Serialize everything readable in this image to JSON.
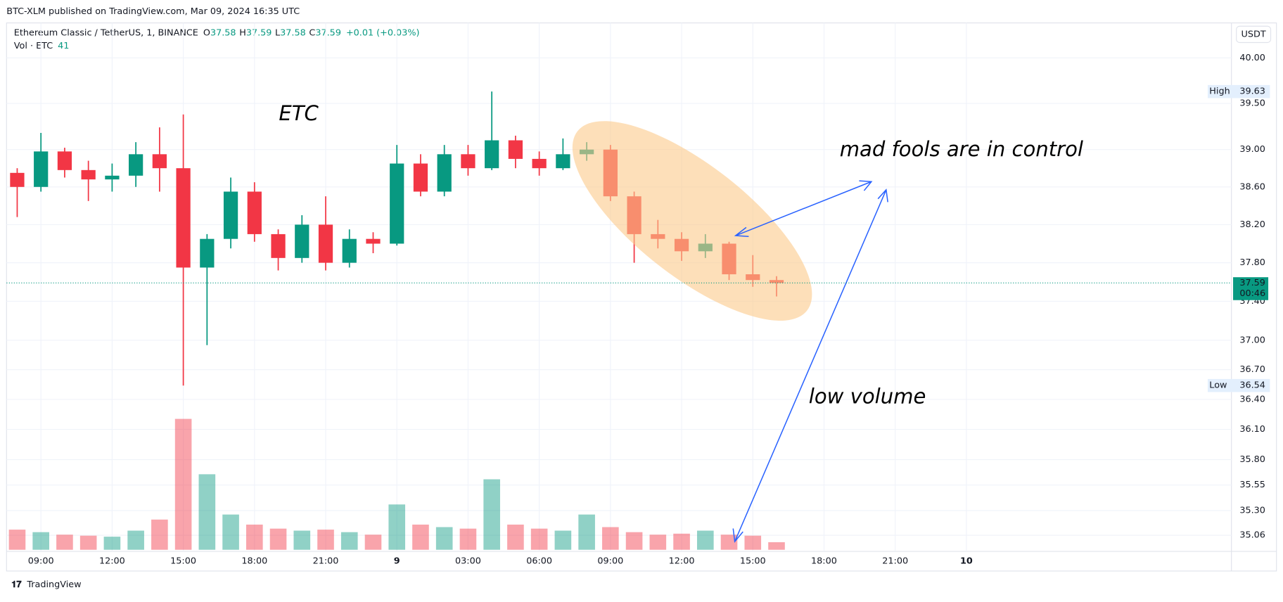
{
  "header": {
    "published": "BTC-XLM published on TradingView.com, Mar 09, 2024 16:35 UTC",
    "symbol": "Ethereum Classic / TetherUS, 1, BINANCE",
    "ohlc": [
      {
        "label": "O",
        "value": 37.58
      },
      {
        "label": "H",
        "value": 37.59
      },
      {
        "label": "L",
        "value": 37.58
      },
      {
        "label": "C",
        "value": 37.59
      }
    ],
    "change": "+0.01 (+0.03%)",
    "volume_label": "Vol · ETC",
    "volume_value": 41
  },
  "currency": "USDT",
  "footer": "TradingView",
  "chart_data": {
    "type": "candlestick",
    "x": [
      8,
      9,
      10,
      11,
      12,
      13,
      14,
      15,
      16,
      17,
      18,
      19,
      20,
      21,
      22,
      23,
      24,
      25,
      26,
      27,
      28,
      29,
      30,
      31,
      32,
      33,
      34,
      35,
      36,
      37,
      38,
      39,
      40
    ],
    "open": [
      38.75,
      38.6,
      38.98,
      38.78,
      38.68,
      38.72,
      38.95,
      38.8,
      37.75,
      38.05,
      38.55,
      38.1,
      37.85,
      38.2,
      37.8,
      38.05,
      38.0,
      38.85,
      38.55,
      38.95,
      38.8,
      39.1,
      38.9,
      38.8,
      38.95,
      39.0,
      38.5,
      38.1,
      38.05,
      37.92,
      38.0,
      37.68,
      37.62
    ],
    "high": [
      38.8,
      39.18,
      39.02,
      38.88,
      38.85,
      39.08,
      39.24,
      39.38,
      38.1,
      38.7,
      38.65,
      38.15,
      38.3,
      38.5,
      38.15,
      38.12,
      39.05,
      38.95,
      39.05,
      39.05,
      39.63,
      39.15,
      38.98,
      39.12,
      39.08,
      39.05,
      38.55,
      38.25,
      38.12,
      38.1,
      38.02,
      37.88,
      37.66
    ],
    "low": [
      38.28,
      38.55,
      38.7,
      38.45,
      38.55,
      38.6,
      38.55,
      36.54,
      36.95,
      37.95,
      38.02,
      37.72,
      37.8,
      37.72,
      37.75,
      37.9,
      37.98,
      38.5,
      38.5,
      38.72,
      38.78,
      38.8,
      38.72,
      38.78,
      38.88,
      38.45,
      37.8,
      37.95,
      37.82,
      37.85,
      37.62,
      37.55,
      37.45
    ],
    "close": [
      38.6,
      38.98,
      38.78,
      38.68,
      38.72,
      38.95,
      38.8,
      37.75,
      38.05,
      38.55,
      38.1,
      37.85,
      38.2,
      37.8,
      38.05,
      38.0,
      38.85,
      38.55,
      38.95,
      38.8,
      39.1,
      38.9,
      38.8,
      38.95,
      39.0,
      38.5,
      38.1,
      38.05,
      37.92,
      38.0,
      37.68,
      37.62,
      37.59
    ],
    "volume": [
      400,
      350,
      300,
      280,
      260,
      380,
      600,
      2600,
      1500,
      700,
      500,
      420,
      380,
      400,
      350,
      300,
      900,
      500,
      450,
      420,
      1400,
      500,
      420,
      380,
      700,
      450,
      350,
      300,
      320,
      380,
      300,
      280,
      150
    ],
    "up_color": "#089981",
    "down_color": "#f23645",
    "xlim": [
      7.62,
      59.17
    ],
    "xticks": [
      {
        "value": 9,
        "label": "09:00"
      },
      {
        "value": 12,
        "label": "12:00"
      },
      {
        "value": 15,
        "label": "15:00"
      },
      {
        "value": 18,
        "label": "18:00"
      },
      {
        "value": 21,
        "label": "21:00"
      },
      {
        "value": 24,
        "label": "9"
      },
      {
        "value": 27,
        "label": "03:00"
      },
      {
        "value": 30,
        "label": "06:00"
      },
      {
        "value": 33,
        "label": "09:00"
      },
      {
        "value": 36,
        "label": "12:00"
      },
      {
        "value": 39,
        "label": "15:00"
      },
      {
        "value": 42,
        "label": "18:00"
      },
      {
        "value": 45,
        "label": "21:00"
      },
      {
        "value": 48,
        "label": "10"
      }
    ],
    "ylim": [
      34.92,
      40.37
    ],
    "log": true,
    "grid": true,
    "yticks": [
      {
        "value": 40,
        "label": "40.00"
      },
      {
        "value": 39.5,
        "label": "39.50"
      },
      {
        "value": 39,
        "label": "39.00"
      },
      {
        "value": 38.6,
        "label": "38.60"
      },
      {
        "value": 38.2,
        "label": "38.20"
      },
      {
        "value": 37.8,
        "label": "37.80"
      },
      {
        "value": 37.4,
        "label": "37.40"
      },
      {
        "value": 37,
        "label": "37.00"
      },
      {
        "value": 36.7,
        "label": "36.70"
      },
      {
        "value": 36.4,
        "label": "36.40"
      },
      {
        "value": 36.1,
        "label": "36.10"
      },
      {
        "value": 35.8,
        "label": "35.80"
      },
      {
        "value": 35.55,
        "label": "35.55"
      },
      {
        "value": 35.3,
        "label": "35.30"
      },
      {
        "value": 35.06,
        "label": "35.06"
      }
    ],
    "high_marker": {
      "label": "High",
      "value": 39.63
    },
    "low_marker": {
      "label": "Low",
      "value": 36.54
    },
    "last_price": 37.59,
    "countdown": "00:46",
    "annotations": [
      "ETC",
      "mad fools are in control",
      "low volume"
    ]
  }
}
